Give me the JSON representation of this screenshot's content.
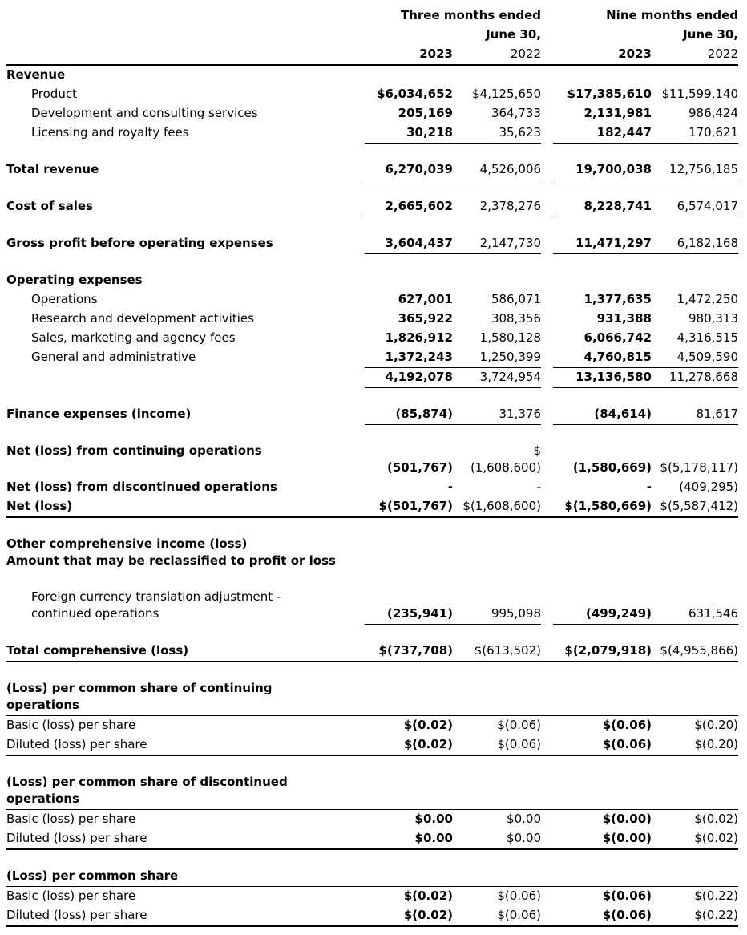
{
  "colors": {
    "text": "#000000",
    "background": "#ffffff",
    "rule": "#000000"
  },
  "header": {
    "three_months": {
      "title": "Three months ended",
      "date": "June 30,",
      "years": [
        "2023",
        "2022"
      ]
    },
    "nine_months": {
      "title": "Nine months ended",
      "date": "June 30,",
      "years": [
        "2023",
        "2022"
      ]
    }
  },
  "rows": [
    {
      "type": "section",
      "label": "Revenue"
    },
    {
      "type": "data",
      "label": "Product",
      "indent": true,
      "cells": [
        "$6,034,652",
        "$4,125,650",
        "$17,385,610",
        "$11,599,140"
      ]
    },
    {
      "type": "data",
      "label": "Development and consulting services",
      "indent": true,
      "cells": [
        "205,169",
        "364,733",
        "2,131,981",
        "986,424"
      ]
    },
    {
      "type": "data",
      "label": "Licensing and royalty fees",
      "indent": true,
      "cells": [
        "30,218",
        "35,623",
        "182,447",
        "170,621"
      ],
      "rule": "group"
    },
    {
      "type": "spacer"
    },
    {
      "type": "data",
      "label": "Total revenue",
      "bold": true,
      "cells": [
        "6,270,039",
        "4,526,006",
        "19,700,038",
        "12,756,185"
      ],
      "rule": "group"
    },
    {
      "type": "spacer"
    },
    {
      "type": "data",
      "label": "Cost of sales",
      "bold": true,
      "cells": [
        "2,665,602",
        "2,378,276",
        "8,228,741",
        "6,574,017"
      ],
      "rule": "group"
    },
    {
      "type": "spacer"
    },
    {
      "type": "data",
      "label": "Gross profit before operating expenses",
      "bold": true,
      "cells": [
        "3,604,437",
        "2,147,730",
        "11,471,297",
        "6,182,168"
      ],
      "rule": "group"
    },
    {
      "type": "spacer"
    },
    {
      "type": "section",
      "label": "Operating expenses"
    },
    {
      "type": "data",
      "label": "Operations",
      "indent": true,
      "cells": [
        "627,001",
        "586,071",
        "1,377,635",
        "1,472,250"
      ]
    },
    {
      "type": "data",
      "label": "Research and development activities",
      "indent": true,
      "cells": [
        "365,922",
        "308,356",
        "931,388",
        "980,313"
      ]
    },
    {
      "type": "data",
      "label": "Sales, marketing and agency fees",
      "indent": true,
      "cells": [
        "1,826,912",
        "1,580,128",
        "6,066,742",
        "4,316,515"
      ]
    },
    {
      "type": "data",
      "label": "General and administrative",
      "indent": true,
      "cells": [
        "1,372,243",
        "1,250,399",
        "4,760,815",
        "4,509,590"
      ],
      "rule": "group"
    },
    {
      "type": "data",
      "label": "",
      "cells": [
        "4,192,078",
        "3,724,954",
        "13,136,580",
        "11,278,668"
      ],
      "rule": "group"
    },
    {
      "type": "spacer"
    },
    {
      "type": "data",
      "label": "Finance expenses (income)",
      "bold": true,
      "cells": [
        "(85,874)",
        "31,376",
        "(84,614)",
        "81,617"
      ],
      "rule": "group"
    },
    {
      "type": "spacer"
    },
    {
      "type": "data",
      "label": "Net (loss) from continuing operations",
      "bold": true,
      "cells": [
        "(501,767)",
        "$\n(1,608,600)",
        "(1,580,669)",
        "$(5,178,117)"
      ]
    },
    {
      "type": "data",
      "label": "Net (loss) from discontinued operations",
      "bold": true,
      "cells": [
        "-",
        "-",
        "-",
        "(409,295)"
      ]
    },
    {
      "type": "data",
      "label": "Net (loss)",
      "bold": true,
      "cells": [
        "$(501,767)",
        "$(1,608,600)",
        "$(1,580,669)",
        "$(5,587,412)"
      ],
      "rule": "full2"
    },
    {
      "type": "spacer"
    },
    {
      "type": "section",
      "label": "Other comprehensive income (loss)\nAmount that may be reclassified to profit or loss"
    },
    {
      "type": "spacer"
    },
    {
      "type": "data",
      "label": "Foreign currency translation adjustment -\ncontinued operations",
      "indent": true,
      "cells": [
        "(235,941)",
        "995,098",
        "(499,249)",
        "631,546"
      ],
      "rule": "group"
    },
    {
      "type": "spacer"
    },
    {
      "type": "data",
      "label": "Total comprehensive (loss)",
      "bold": true,
      "cells": [
        "$(737,708)",
        "$(613,502)",
        "$(2,079,918)",
        "$(4,955,866)"
      ],
      "rule": "full2"
    },
    {
      "type": "spacer"
    },
    {
      "type": "section",
      "label": "(Loss) per common share of continuing\noperations",
      "rule": "full"
    },
    {
      "type": "data",
      "label": "Basic (loss) per share",
      "cells": [
        "$(0.02)",
        "$(0.06)",
        "$(0.06)",
        "$(0.20)"
      ]
    },
    {
      "type": "data",
      "label": "Diluted (loss) per share",
      "cells": [
        "$(0.02)",
        "$(0.06)",
        "$(0.06)",
        "$(0.20)"
      ],
      "rule": "full2"
    },
    {
      "type": "spacer"
    },
    {
      "type": "section",
      "label": "(Loss) per common share of discontinued\noperations",
      "rule": "full"
    },
    {
      "type": "data",
      "label": "Basic (loss) per share",
      "cells": [
        "$0.00",
        "$0.00",
        "$(0.00)",
        "$(0.02)"
      ]
    },
    {
      "type": "data",
      "label": "Diluted (loss) per share",
      "cells": [
        "$0.00",
        "$0.00",
        "$(0.00)",
        "$(0.02)"
      ],
      "rule": "full2"
    },
    {
      "type": "spacer"
    },
    {
      "type": "section",
      "label": "(Loss) per common share",
      "rule": "full"
    },
    {
      "type": "data",
      "label": "Basic (loss) per share",
      "cells": [
        "$(0.02)",
        "$(0.06)",
        "$(0.06)",
        "$(0.22)"
      ]
    },
    {
      "type": "data",
      "label": "Diluted (loss) per share",
      "cells": [
        "$(0.02)",
        "$(0.06)",
        "$(0.06)",
        "$(0.22)"
      ],
      "rule": "full2"
    }
  ]
}
